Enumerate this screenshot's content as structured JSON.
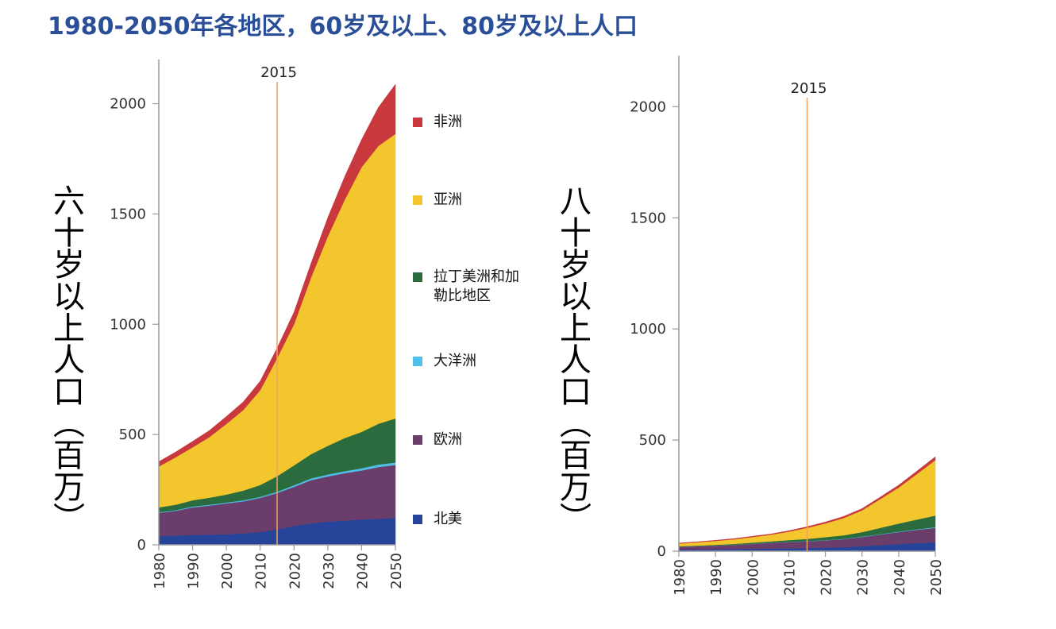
{
  "title": "1980-2050年各地区，60岁及以上、80岁及以上人口",
  "colors": {
    "africa": "#c8383d",
    "asia": "#f2c62c",
    "latin_america": "#2b6c3f",
    "oceania": "#4fc0e8",
    "europe": "#6a3d6a",
    "north_america": "#26449a",
    "marker": "#f0a060",
    "axis": "#999999"
  },
  "legend": [
    {
      "key": "africa",
      "label": "非洲"
    },
    {
      "key": "asia",
      "label": "亚洲"
    },
    {
      "key": "latin_america",
      "label": "拉丁美洲和加勒比地区"
    },
    {
      "key": "oceania",
      "label": "大洋洲"
    },
    {
      "key": "europe",
      "label": "欧洲"
    },
    {
      "key": "north_america",
      "label": "北美"
    }
  ],
  "chart_data": [
    {
      "type": "area",
      "stacked": true,
      "ylabel": "六十岁以上人口（百万）",
      "x": [
        1980,
        1985,
        1990,
        1995,
        2000,
        2005,
        2010,
        2015,
        2020,
        2025,
        2030,
        2035,
        2040,
        2045,
        2050
      ],
      "x_ticks": [
        1980,
        1990,
        2000,
        2010,
        2020,
        2030,
        2040,
        2050
      ],
      "y_ticks": [
        0,
        500,
        1000,
        1500,
        2000
      ],
      "ylim": [
        0,
        2200
      ],
      "marker": {
        "x": 2015,
        "label": "2015"
      },
      "series": [
        {
          "key": "north_america",
          "name": "北美",
          "values": [
            40,
            42,
            45,
            46,
            48,
            52,
            58,
            70,
            85,
            98,
            105,
            110,
            115,
            118,
            122
          ]
        },
        {
          "key": "europe",
          "name": "欧洲",
          "values": [
            105,
            112,
            125,
            132,
            140,
            145,
            155,
            165,
            178,
            195,
            205,
            215,
            222,
            235,
            240
          ]
        },
        {
          "key": "oceania",
          "name": "大洋洲",
          "values": [
            3,
            3,
            4,
            4,
            4,
            5,
            5,
            6,
            7,
            8,
            9,
            9,
            10,
            11,
            11
          ]
        },
        {
          "key": "latin_america",
          "name": "拉丁美洲和加勒比地区",
          "values": [
            22,
            25,
            28,
            32,
            36,
            44,
            53,
            70,
            90,
            110,
            130,
            150,
            165,
            185,
            200
          ]
        },
        {
          "key": "asia",
          "name": "亚洲",
          "values": [
            185,
            215,
            240,
            275,
            320,
            365,
            430,
            535,
            640,
            800,
            950,
            1080,
            1200,
            1260,
            1290
          ]
        },
        {
          "key": "africa",
          "name": "非洲",
          "values": [
            22,
            24,
            27,
            30,
            34,
            37,
            41,
            46,
            55,
            64,
            85,
            105,
            125,
            175,
            225
          ]
        }
      ]
    },
    {
      "type": "area",
      "stacked": true,
      "ylabel": "八十岁以上人口（百万）",
      "x": [
        1980,
        1985,
        1990,
        1995,
        2000,
        2005,
        2010,
        2015,
        2020,
        2025,
        2030,
        2035,
        2040,
        2045,
        2050
      ],
      "x_ticks": [
        1980,
        1990,
        2000,
        2010,
        2020,
        2030,
        2040,
        2050
      ],
      "y_ticks": [
        0,
        500,
        1000,
        1500,
        2000
      ],
      "ylim": [
        0,
        2230
      ],
      "marker": {
        "x": 2015,
        "label": "2015"
      },
      "series": [
        {
          "key": "north_america",
          "name": "北美",
          "values": [
            8,
            8,
            9,
            10,
            11,
            12,
            13,
            14,
            16,
            18,
            22,
            27,
            32,
            36,
            40
          ]
        },
        {
          "key": "europe",
          "name": "欧洲",
          "values": [
            12,
            14,
            16,
            18,
            22,
            25,
            28,
            30,
            33,
            36,
            42,
            48,
            54,
            60,
            65
          ]
        },
        {
          "key": "oceania",
          "name": "大洋洲",
          "values": [
            0.4,
            0.5,
            0.5,
            0.6,
            0.7,
            0.8,
            1,
            1,
            1.2,
            1.4,
            1.6,
            1.9,
            2.2,
            2.5,
            3
          ]
        },
        {
          "key": "latin_america",
          "name": "拉丁美洲和加勒比地区",
          "values": [
            2,
            2.5,
            3,
            4,
            5,
            6,
            8,
            10,
            13,
            16,
            20,
            28,
            36,
            44,
            52
          ]
        },
        {
          "key": "asia",
          "name": "亚洲",
          "values": [
            12,
            15,
            18,
            21,
            25,
            30,
            38,
            50,
            62,
            78,
            98,
            130,
            162,
            205,
            250
          ]
        },
        {
          "key": "africa",
          "name": "非洲",
          "values": [
            2,
            2,
            2.5,
            3,
            3,
            3.5,
            4,
            5,
            6,
            7,
            8,
            9,
            11,
            13,
            15
          ]
        }
      ]
    }
  ]
}
